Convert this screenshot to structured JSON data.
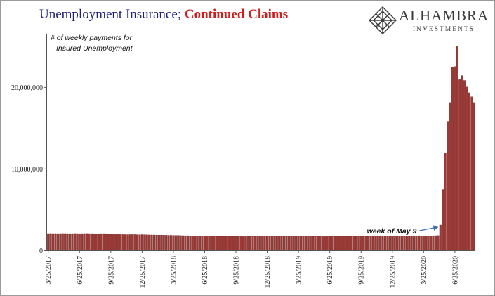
{
  "header": {
    "title_part1": "Unemployment Insurance;",
    "title_part2": "Continued Claims",
    "subtitle_line1": "# of weekly payments for",
    "subtitle_line2": "Insured Unemployment"
  },
  "logo": {
    "brand": "ALHAMBRA",
    "sub": "INVESTMENTS",
    "icon": "diamond-lattice-icon"
  },
  "colors": {
    "bar": "#9b3a36",
    "bar_edge": "#6e2421",
    "title_blue": "#1f1f7a",
    "title_red": "#d21b1b",
    "arrow": "#3f6fb5"
  },
  "chart_data": {
    "type": "bar",
    "ylim": [
      0,
      25500000
    ],
    "yticks": [
      0,
      10000000,
      20000000
    ],
    "ytick_labels": [
      "0",
      "10,000,000",
      "20,000,000"
    ],
    "grid": false,
    "xtick_labels": [
      "3/25/2017",
      "6/25/2017",
      "9/25/2017",
      "12/25/2017",
      "3/25/2018",
      "6/25/2018",
      "9/25/2018",
      "12/25/2018",
      "3/25/2019",
      "6/25/2019",
      "9/25/2019",
      "12/25/2019",
      "3/25/2020",
      "6/25/2020"
    ],
    "xtick_positions": [
      0,
      13,
      26,
      39,
      52,
      65,
      78,
      91,
      104,
      117,
      130,
      143,
      156,
      169
    ],
    "annotation": {
      "text": "week of May 9",
      "bar_index": 163
    },
    "values": [
      1980000,
      1990000,
      1975000,
      1985000,
      1970000,
      1980000,
      1990000,
      1985000,
      1975000,
      1970000,
      1980000,
      1990000,
      1980000,
      1970000,
      1975000,
      1985000,
      1990000,
      1980000,
      1975000,
      1970000,
      1965000,
      1970000,
      1975000,
      1980000,
      1970000,
      1960000,
      1965000,
      1950000,
      1955000,
      1960000,
      1950000,
      1945000,
      1940000,
      1935000,
      1940000,
      1950000,
      1945000,
      1930000,
      1920000,
      1940000,
      1930000,
      1910000,
      1900000,
      1895000,
      1890000,
      1880000,
      1875000,
      1885000,
      1870000,
      1860000,
      1850000,
      1855000,
      1840000,
      1830000,
      1845000,
      1820000,
      1810000,
      1800000,
      1805000,
      1790000,
      1780000,
      1775000,
      1770000,
      1765000,
      1780000,
      1760000,
      1750000,
      1745000,
      1740000,
      1735000,
      1730000,
      1725000,
      1720000,
      1715000,
      1710000,
      1705000,
      1700000,
      1700000,
      1705000,
      1700000,
      1695000,
      1690000,
      1695000,
      1700000,
      1705000,
      1710000,
      1720000,
      1730000,
      1740000,
      1735000,
      1745000,
      1760000,
      1750000,
      1740000,
      1730000,
      1720000,
      1715000,
      1710000,
      1705000,
      1700000,
      1705000,
      1710000,
      1715000,
      1720000,
      1725000,
      1730000,
      1720000,
      1715000,
      1710000,
      1705000,
      1700000,
      1700000,
      1705000,
      1700000,
      1695000,
      1690000,
      1695000,
      1700000,
      1700000,
      1705000,
      1710000,
      1715000,
      1720000,
      1715000,
      1710000,
      1705000,
      1700000,
      1700000,
      1705000,
      1710000,
      1715000,
      1720000,
      1725000,
      1730000,
      1735000,
      1740000,
      1745000,
      1750000,
      1755000,
      1760000,
      1765000,
      1770000,
      1760000,
      1750000,
      1745000,
      1740000,
      1750000,
      1760000,
      1770000,
      1780000,
      1790000,
      1785000,
      1780000,
      1790000,
      1800000,
      1790000,
      1780000,
      1775000,
      1770000,
      1790000,
      1800000,
      1810000,
      1820000,
      3100000,
      7450000,
      11900000,
      15800000,
      18100000,
      22400000,
      22500000,
      25000000,
      20900000,
      21400000,
      20800000,
      20000000,
      19300000,
      18800000,
      18100000
    ]
  }
}
